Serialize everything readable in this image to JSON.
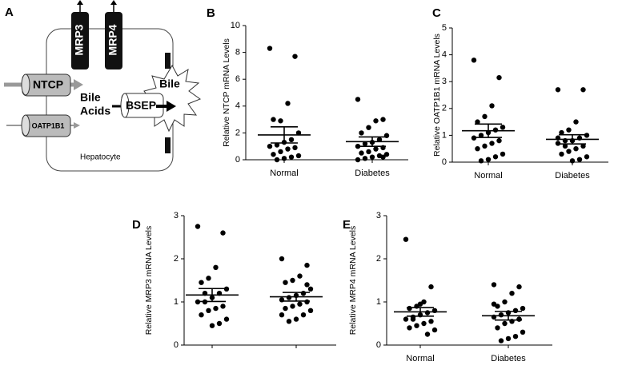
{
  "diagram": {
    "label": "A",
    "transporters": [
      "MRP3",
      "MRP4",
      "NTCP",
      "OATP1B1",
      "BSEP"
    ],
    "bile_acids": [
      "Bile",
      "Acids"
    ],
    "bile": "Bile",
    "cell": "Hepatocyte"
  },
  "chart_data": [
    {
      "type": "dot",
      "label": "B",
      "ylabel": "Relative NTCP mRNA Levels",
      "categories": [
        "Normal",
        "Diabetes"
      ],
      "groups": [
        {
          "values": [
            8.3,
            7.7,
            4.2,
            2.9,
            3.0,
            2.0,
            1.5,
            1.3,
            1.1,
            1.0,
            0.9,
            0.8,
            0.6,
            0.4,
            0.3,
            0.2,
            0.1,
            0.0
          ],
          "mean": 1.85,
          "sem": 0.6
        },
        {
          "values": [
            4.5,
            3.0,
            2.9,
            2.4,
            2.0,
            1.8,
            1.5,
            1.3,
            1.2,
            1.0,
            0.9,
            0.8,
            0.6,
            0.5,
            0.4,
            0.3,
            0.2,
            0.1,
            0.0,
            0.2
          ],
          "mean": 1.35,
          "sem": 0.35
        }
      ],
      "ylim": [
        0,
        10
      ],
      "yticks": [
        0,
        2,
        4,
        6,
        8,
        10
      ]
    },
    {
      "type": "dot",
      "label": "C",
      "ylabel": "Relative OATP1B1 mRNA Levels",
      "categories": [
        "Normal",
        "Diabetes"
      ],
      "groups": [
        {
          "values": [
            3.8,
            3.15,
            2.1,
            1.7,
            1.5,
            1.3,
            1.2,
            1.1,
            1.0,
            0.9,
            0.8,
            0.7,
            0.6,
            0.5,
            0.3,
            0.2,
            0.1,
            0.05
          ],
          "mean": 1.17,
          "sem": 0.25
        },
        {
          "values": [
            2.7,
            2.7,
            1.5,
            1.2,
            1.1,
            1.0,
            0.9,
            0.8,
            0.8,
            0.7,
            0.6,
            0.5,
            0.4,
            0.3,
            0.2,
            0.1,
            0.05,
            0.6,
            0.9
          ],
          "mean": 0.85,
          "sem": 0.17
        }
      ],
      "ylim": [
        0,
        5
      ],
      "yticks": [
        0,
        1,
        2,
        3,
        4,
        5
      ]
    },
    {
      "type": "dot",
      "label": "D",
      "ylabel": "Relative MRP3 mRNA Levels",
      "categories": [
        null,
        null
      ],
      "groups": [
        {
          "values": [
            2.75,
            2.6,
            1.8,
            1.55,
            1.45,
            1.3,
            1.2,
            1.1,
            1.0,
            1.0,
            0.9,
            0.85,
            0.8,
            0.7,
            0.6,
            0.5,
            0.45,
            1.2
          ],
          "mean": 1.16,
          "sem": 0.15
        },
        {
          "values": [
            2.0,
            1.85,
            1.6,
            1.5,
            1.45,
            1.3,
            1.2,
            1.15,
            1.1,
            1.05,
            1.0,
            0.95,
            0.9,
            0.85,
            0.8,
            0.7,
            0.6,
            0.55,
            0.7,
            1.4
          ],
          "mean": 1.12,
          "sem": 0.1
        }
      ],
      "ylim": [
        0,
        3
      ],
      "yticks": [
        0,
        1,
        2,
        3
      ]
    },
    {
      "type": "dot",
      "label": "E",
      "ylabel": "Relative MRP4 mRNA Levels",
      "categories": [
        "Normal",
        "Diabetes"
      ],
      "groups": [
        {
          "values": [
            2.45,
            1.35,
            1.0,
            0.9,
            0.85,
            0.8,
            0.75,
            0.7,
            0.65,
            0.6,
            0.55,
            0.5,
            0.45,
            0.4,
            0.35,
            0.25,
            0.95,
            0.6
          ],
          "mean": 0.77,
          "sem": 0.1
        },
        {
          "values": [
            1.4,
            1.35,
            1.2,
            1.0,
            0.9,
            0.85,
            0.8,
            0.75,
            0.7,
            0.65,
            0.6,
            0.55,
            0.5,
            0.4,
            0.3,
            0.2,
            0.15,
            0.1,
            0.95,
            0.6
          ],
          "mean": 0.68,
          "sem": 0.1
        }
      ],
      "ylim": [
        0,
        3
      ],
      "yticks": [
        0,
        1,
        2,
        3
      ]
    }
  ]
}
